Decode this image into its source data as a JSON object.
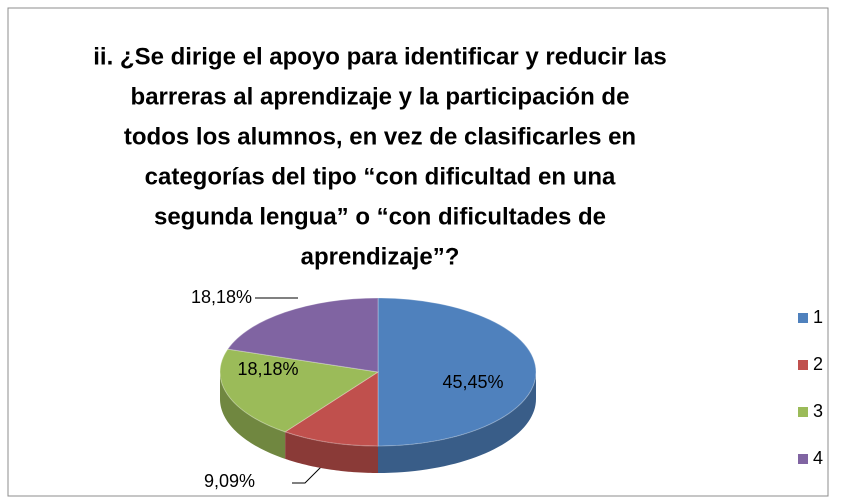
{
  "chart_data": {
    "type": "pie3d",
    "title": [
      "ii. ¿Se dirige el apoyo para identificar y reducir las",
      "barreras al aprendizaje y la participación de",
      "todos los alumnos, en vez de clasificarles en",
      "categorías del tipo “con dificultad en una",
      "segunda lengua” o “con dificultades de",
      "aprendizaje”?"
    ],
    "categories": [
      "1",
      "2",
      "3",
      "4"
    ],
    "values": [
      45.45,
      9.09,
      18.18,
      18.18
    ],
    "value_labels": [
      "45,45%",
      "9,09%",
      "18,18%",
      "18,18%"
    ],
    "colors": [
      "#4f81bd",
      "#c0504d",
      "#9bbb59",
      "#8064a2"
    ],
    "legend": "right"
  }
}
